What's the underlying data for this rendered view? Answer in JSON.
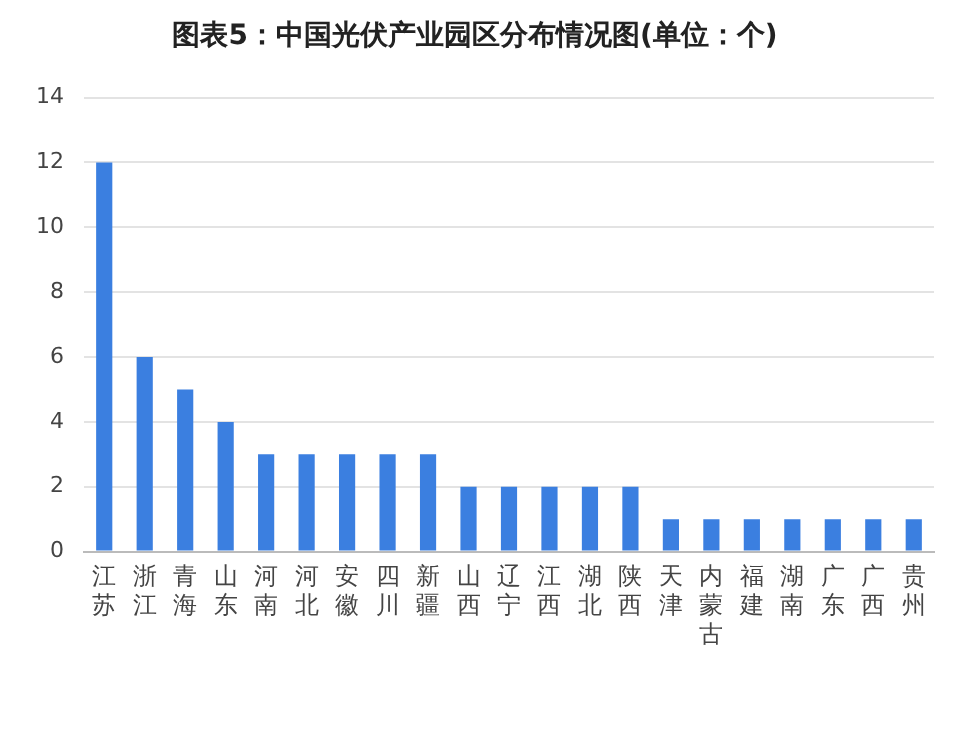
{
  "chart_data": {
    "type": "bar",
    "title": "图表5：中国光伏产业园区分布情况图(单位：个)",
    "categories": [
      "江苏",
      "浙江",
      "青海",
      "山东",
      "河南",
      "河北",
      "安徽",
      "四川",
      "新疆",
      "山西",
      "辽宁",
      "江西",
      "湖北",
      "陕西",
      "天津",
      "内蒙古",
      "福建",
      "湖南",
      "广东",
      "广西",
      "贵州"
    ],
    "values": [
      12,
      6,
      5,
      4,
      3,
      3,
      3,
      3,
      3,
      2,
      2,
      2,
      2,
      2,
      1,
      1,
      1,
      1,
      1,
      1,
      1
    ],
    "color": "#3b7fe0",
    "ylim": [
      0,
      14
    ],
    "yticks": [
      0,
      2,
      4,
      6,
      8,
      10,
      12,
      14
    ],
    "grid": "y"
  }
}
